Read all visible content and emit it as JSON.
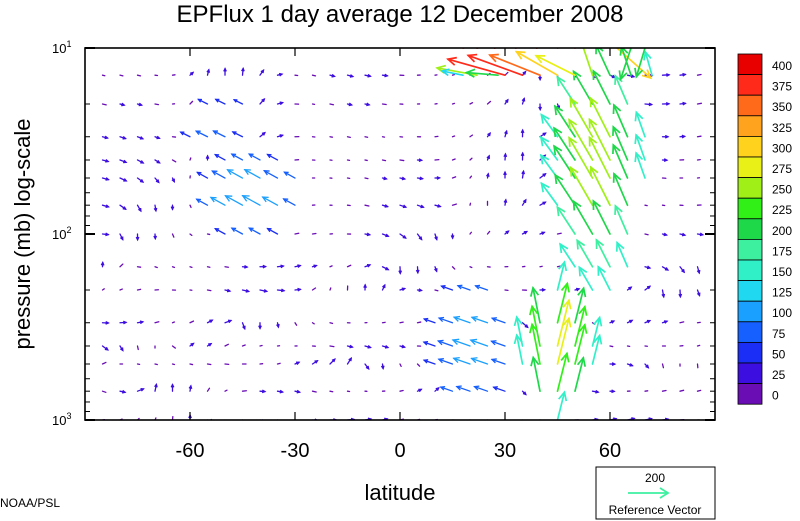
{
  "title": "EPFlux  1 day average  12 December  2008",
  "credit": "NOAA/PSL",
  "chart_data": {
    "type": "quiver",
    "title": "EPFlux  1 day average  12 December  2008",
    "xlabel": "latitude",
    "ylabel": "pressure (mb)  log-scale",
    "xlim": [
      -90,
      90
    ],
    "ylim": [
      1000,
      10
    ],
    "y_scale": "log",
    "x_ticks": [
      -60,
      -30,
      0,
      30,
      60
    ],
    "y_ticks": [
      {
        "value": 10,
        "base": "10",
        "exp": "1"
      },
      {
        "value": 100,
        "base": "10",
        "exp": "2"
      },
      {
        "value": 1000,
        "base": "10",
        "exp": "3"
      }
    ],
    "colorbar": {
      "levels": [
        0,
        25,
        50,
        75,
        100,
        125,
        150,
        175,
        200,
        225,
        250,
        275,
        300,
        325,
        350,
        375,
        400
      ],
      "colors": [
        "#6a0db5",
        "#3d0ee0",
        "#1a2ef5",
        "#1560ff",
        "#1aa0ff",
        "#20d8f0",
        "#30f0c8",
        "#3cf0a0",
        "#1ed84a",
        "#30f018",
        "#a0f018",
        "#e8f018",
        "#ffd21e",
        "#ffa31e",
        "#ff6a1a",
        "#ff2a1a",
        "#e80000"
      ]
    },
    "reference_vector": {
      "magnitude": "200",
      "label": "Reference Vector"
    },
    "vectors": [
      {
        "lat": 18,
        "p": 10,
        "u": 25,
        "v": 6,
        "mag": 395
      },
      {
        "lat": 22,
        "p": 10,
        "u": 32,
        "v": 8,
        "mag": 410
      },
      {
        "lat": 27,
        "p": 10,
        "u": 40,
        "v": 10,
        "mag": 400
      },
      {
        "lat": 33,
        "p": 10,
        "u": 48,
        "v": 10,
        "mag": 390
      },
      {
        "lat": 39,
        "p": 10,
        "u": 52,
        "v": 12,
        "mag": 410
      },
      {
        "lat": 45,
        "p": 10,
        "u": 40,
        "v": 14,
        "mag": 395
      },
      {
        "lat": 50,
        "p": 10,
        "u": 30,
        "v": 12,
        "mag": 380
      },
      {
        "lat": 56,
        "p": 10,
        "u": -14,
        "v": 20,
        "mag": 260
      },
      {
        "lat": 62,
        "p": 10,
        "u": 18,
        "v": -16,
        "mag": 300
      },
      {
        "lat": 66,
        "p": 10,
        "u": -8,
        "v": -24,
        "mag": 220
      },
      {
        "lat": 70,
        "p": 10,
        "u": -6,
        "v": -20,
        "mag": 200
      },
      {
        "lat": 30,
        "p": 14,
        "u": -50,
        "v": 14,
        "mag": 395
      },
      {
        "lat": 35,
        "p": 14,
        "u": -44,
        "v": 16,
        "mag": 385
      },
      {
        "lat": 40,
        "p": 14,
        "u": -40,
        "v": 16,
        "mag": 360
      },
      {
        "lat": 45,
        "p": 14,
        "u": -28,
        "v": 16,
        "mag": 315
      },
      {
        "lat": 50,
        "p": 14,
        "u": -20,
        "v": 10,
        "mag": 290
      },
      {
        "lat": 55,
        "p": 14,
        "u": -6,
        "v": 18,
        "mag": 250
      },
      {
        "lat": 60,
        "p": 14,
        "u": -12,
        "v": 26,
        "mag": 220
      },
      {
        "lat": 66,
        "p": 14,
        "u": -8,
        "v": 24,
        "mag": 200
      },
      {
        "lat": 72,
        "p": 14,
        "u": -4,
        "v": 14,
        "mag": 160
      },
      {
        "lat": 22,
        "p": 14,
        "u": -22,
        "v": 4,
        "mag": 270
      },
      {
        "lat": 18,
        "p": 14,
        "u": -10,
        "v": 2,
        "mag": 140
      },
      {
        "lat": 28,
        "p": 14,
        "u": -24,
        "v": 2,
        "mag": 210
      }
    ]
  }
}
